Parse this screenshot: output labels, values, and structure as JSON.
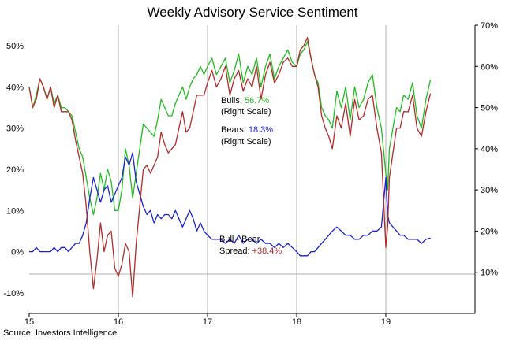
{
  "chart_data": {
    "type": "line",
    "title": "Weekly Advisory Service Sentiment",
    "source": "Source: Investors Intelligence",
    "x_tick_labels": [
      "15",
      "16",
      "17",
      "18",
      "19"
    ],
    "x_range": [
      2015.0,
      2020.0
    ],
    "grid": "vertical lines at year boundaries",
    "right_axis": {
      "range": [
        0,
        70
      ],
      "tick_labels": [
        "10%",
        "20%",
        "30%",
        "40%",
        "50%",
        "60%",
        "70%"
      ],
      "tick_values": [
        10,
        20,
        30,
        40,
        50,
        60,
        70
      ]
    },
    "left_axis": {
      "range": [
        -15,
        55
      ],
      "tick_labels": [
        "-10%",
        "0%",
        "10%",
        "20%",
        "30%",
        "40%",
        "50%"
      ],
      "tick_values": [
        -10,
        0,
        10,
        20,
        30,
        40,
        50
      ]
    },
    "series": [
      {
        "name": "Bulls",
        "axis": "right",
        "color": "#22bb22",
        "x": [
          2015.0,
          2015.04,
          2015.08,
          2015.12,
          2015.16,
          2015.2,
          2015.24,
          2015.28,
          2015.32,
          2015.36,
          2015.4,
          2015.44,
          2015.48,
          2015.52,
          2015.56,
          2015.6,
          2015.64,
          2015.68,
          2015.72,
          2015.76,
          2015.8,
          2015.84,
          2015.88,
          2015.92,
          2015.96,
          2016.0,
          2016.04,
          2016.08,
          2016.12,
          2016.16,
          2016.2,
          2016.24,
          2016.28,
          2016.32,
          2016.36,
          2016.4,
          2016.44,
          2016.48,
          2016.52,
          2016.56,
          2016.6,
          2016.64,
          2016.68,
          2016.72,
          2016.76,
          2016.8,
          2016.84,
          2016.88,
          2016.92,
          2016.96,
          2017.0,
          2017.05,
          2017.1,
          2017.15,
          2017.2,
          2017.25,
          2017.3,
          2017.35,
          2017.4,
          2017.45,
          2017.5,
          2017.55,
          2017.6,
          2017.65,
          2017.7,
          2017.75,
          2017.8,
          2017.85,
          2017.9,
          2017.95,
          2018.0,
          2018.04,
          2018.08,
          2018.12,
          2018.16,
          2018.2,
          2018.24,
          2018.28,
          2018.32,
          2018.36,
          2018.4,
          2018.45,
          2018.5,
          2018.55,
          2018.6,
          2018.65,
          2018.7,
          2018.75,
          2018.8,
          2018.85,
          2018.9,
          2018.95,
          2019.0,
          2019.02,
          2019.04,
          2019.08,
          2019.12,
          2019.16,
          2019.2,
          2019.25,
          2019.3,
          2019.35,
          2019.4,
          2019.45,
          2019.5
        ],
        "values": [
          55,
          50,
          53,
          57,
          55,
          52,
          55,
          51,
          53,
          50,
          50,
          49,
          48,
          44,
          40,
          38,
          33,
          28,
          24,
          28,
          34,
          30,
          35,
          32,
          25,
          25,
          30,
          40,
          36,
          28,
          34,
          40,
          46,
          45,
          44,
          43,
          47,
          52,
          50,
          48,
          48,
          51,
          53,
          55,
          52,
          55,
          57,
          58,
          60,
          58,
          60,
          62,
          58,
          60,
          62,
          56,
          59,
          63,
          56,
          60,
          58,
          62,
          55,
          60,
          63,
          57,
          60,
          62,
          64,
          61,
          60,
          63,
          64,
          66,
          62,
          58,
          56,
          50,
          48,
          47,
          45,
          54,
          50,
          55,
          47,
          55,
          50,
          52,
          56,
          58,
          50,
          45,
          34,
          30,
          40,
          45,
          50,
          49,
          53,
          52,
          56,
          48,
          45,
          52,
          56.7
        ]
      },
      {
        "name": "Bears",
        "axis": "right",
        "color": "#1a22cc",
        "x": [
          2015.0,
          2015.04,
          2015.08,
          2015.12,
          2015.16,
          2015.2,
          2015.24,
          2015.28,
          2015.32,
          2015.36,
          2015.4,
          2015.44,
          2015.48,
          2015.52,
          2015.56,
          2015.6,
          2015.64,
          2015.68,
          2015.72,
          2015.76,
          2015.8,
          2015.84,
          2015.88,
          2015.92,
          2015.96,
          2016.0,
          2016.04,
          2016.08,
          2016.12,
          2016.16,
          2016.2,
          2016.24,
          2016.28,
          2016.32,
          2016.36,
          2016.4,
          2016.44,
          2016.48,
          2016.52,
          2016.56,
          2016.6,
          2016.64,
          2016.68,
          2016.72,
          2016.76,
          2016.8,
          2016.84,
          2016.88,
          2016.92,
          2016.96,
          2017.0,
          2017.05,
          2017.1,
          2017.15,
          2017.2,
          2017.25,
          2017.3,
          2017.35,
          2017.4,
          2017.45,
          2017.5,
          2017.55,
          2017.6,
          2017.65,
          2017.7,
          2017.75,
          2017.8,
          2017.85,
          2017.9,
          2017.95,
          2018.0,
          2018.04,
          2018.08,
          2018.12,
          2018.16,
          2018.2,
          2018.24,
          2018.28,
          2018.32,
          2018.36,
          2018.4,
          2018.45,
          2018.5,
          2018.55,
          2018.6,
          2018.65,
          2018.7,
          2018.75,
          2018.8,
          2018.85,
          2018.9,
          2018.95,
          2019.0,
          2019.02,
          2019.04,
          2019.08,
          2019.12,
          2019.16,
          2019.2,
          2019.25,
          2019.3,
          2019.35,
          2019.4,
          2019.45,
          2019.5
        ],
        "values": [
          15,
          15,
          16,
          15,
          15,
          15,
          15,
          16,
          15,
          16,
          16,
          15,
          16,
          17,
          17,
          19,
          22,
          28,
          33,
          30,
          27,
          30,
          31,
          27,
          29,
          31,
          33,
          38,
          36,
          39,
          32,
          29,
          26,
          24,
          25,
          22,
          24,
          23,
          24,
          24,
          23,
          25,
          23,
          21,
          23,
          25,
          23,
          20,
          22,
          20,
          19,
          18,
          18,
          18,
          17,
          18,
          17,
          19,
          17,
          18,
          18,
          17,
          18,
          17,
          17,
          16,
          17,
          16,
          17,
          16,
          15,
          14,
          14,
          14,
          15,
          15,
          16,
          17,
          18,
          19,
          20,
          21,
          20,
          19,
          19,
          18,
          18,
          19,
          19,
          20,
          20,
          21,
          33,
          24,
          22,
          21,
          20,
          19,
          19,
          18,
          18,
          18,
          17,
          18,
          18.3
        ]
      },
      {
        "name": "Bull - Bear Spread",
        "axis": "left",
        "color": "#b22a2a",
        "x": [
          2015.0,
          2015.04,
          2015.08,
          2015.12,
          2015.16,
          2015.2,
          2015.24,
          2015.28,
          2015.32,
          2015.36,
          2015.4,
          2015.44,
          2015.48,
          2015.52,
          2015.56,
          2015.6,
          2015.64,
          2015.68,
          2015.72,
          2015.76,
          2015.8,
          2015.84,
          2015.88,
          2015.92,
          2015.96,
          2016.0,
          2016.04,
          2016.08,
          2016.12,
          2016.16,
          2016.2,
          2016.24,
          2016.28,
          2016.32,
          2016.36,
          2016.4,
          2016.44,
          2016.48,
          2016.52,
          2016.56,
          2016.6,
          2016.64,
          2016.68,
          2016.72,
          2016.76,
          2016.8,
          2016.84,
          2016.88,
          2016.92,
          2016.96,
          2017.0,
          2017.05,
          2017.1,
          2017.15,
          2017.2,
          2017.25,
          2017.3,
          2017.35,
          2017.4,
          2017.45,
          2017.5,
          2017.55,
          2017.6,
          2017.65,
          2017.7,
          2017.75,
          2017.8,
          2017.85,
          2017.9,
          2017.95,
          2018.0,
          2018.04,
          2018.08,
          2018.12,
          2018.16,
          2018.2,
          2018.24,
          2018.28,
          2018.32,
          2018.36,
          2018.4,
          2018.45,
          2018.5,
          2018.55,
          2018.6,
          2018.65,
          2018.7,
          2018.75,
          2018.8,
          2018.85,
          2018.9,
          2018.95,
          2019.0,
          2019.02,
          2019.04,
          2019.08,
          2019.12,
          2019.16,
          2019.2,
          2019.25,
          2019.3,
          2019.35,
          2019.4,
          2019.45,
          2019.5
        ],
        "values": [
          40,
          35,
          37,
          42,
          40,
          37,
          40,
          35,
          38,
          34,
          34,
          34,
          32,
          27,
          23,
          19,
          11,
          0,
          -9,
          -2,
          7,
          0,
          4,
          5,
          -4,
          -6,
          -3,
          2,
          0,
          -11,
          2,
          11,
          20,
          21,
          19,
          21,
          23,
          29,
          26,
          24,
          25,
          26,
          30,
          34,
          29,
          30,
          34,
          38,
          38,
          38,
          41,
          44,
          40,
          42,
          45,
          38,
          42,
          44,
          39,
          42,
          40,
          45,
          37,
          43,
          46,
          41,
          43,
          46,
          47,
          45,
          45,
          49,
          50,
          52,
          47,
          43,
          40,
          33,
          30,
          28,
          25,
          33,
          30,
          36,
          28,
          37,
          32,
          33,
          37,
          38,
          30,
          24,
          1,
          6,
          18,
          24,
          30,
          30,
          34,
          34,
          38,
          30,
          28,
          34,
          38.4
        ]
      }
    ]
  },
  "annotations": {
    "bulls_label": "Bulls: ",
    "bulls_value": "56.7%",
    "bulls_scale": "(Right Scale)",
    "bears_label": "Bears: ",
    "bears_value": "18.3%",
    "bears_scale": "(Right Scale)",
    "spread_line1": "Bull - Bear",
    "spread_label": "Spread: ",
    "spread_value": "+38.4%"
  }
}
